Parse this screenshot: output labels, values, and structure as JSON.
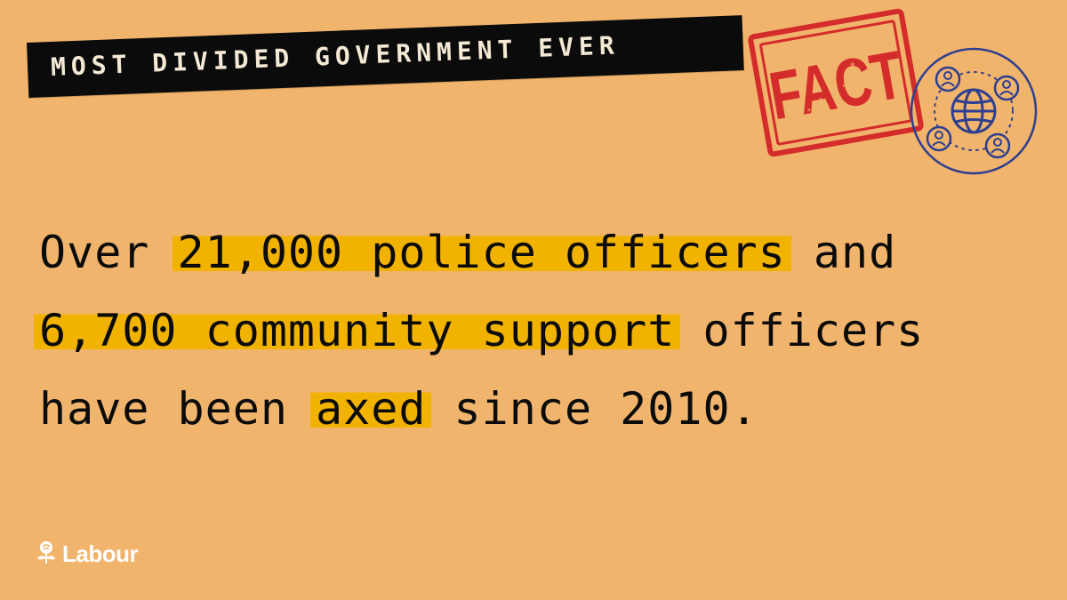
{
  "banner": {
    "text": "MOST DIVIDED GOVERNMENT EVER"
  },
  "stamp": {
    "text": "FACT",
    "color": "#d42b2b"
  },
  "badge": {
    "icon": "globe-network-icon",
    "color": "#2f3f8f"
  },
  "statement": {
    "line1": {
      "prefix": "Over ",
      "highlight": "21,000 police officers",
      "suffix": " and"
    },
    "line2": {
      "prefix": "",
      "highlight": "6,700 community support",
      "suffix": " officers"
    },
    "line3": {
      "prefix": "have been ",
      "highlight": "axed",
      "suffix": " since 2010."
    }
  },
  "logo": {
    "wordmark": "Labour",
    "icon": "rose-icon"
  },
  "colors": {
    "background": "#f1b46c",
    "highlight": "#f2b200",
    "banner": "#0b0b0b",
    "text": "#0b0b0b"
  }
}
